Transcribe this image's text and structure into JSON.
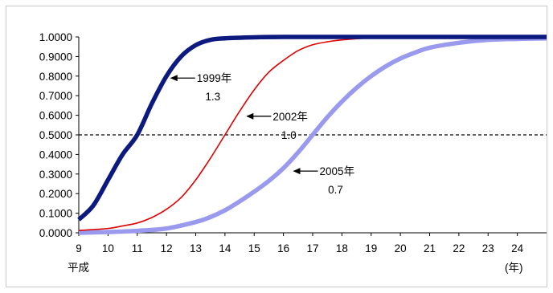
{
  "chart_data": {
    "type": "line",
    "title": "",
    "xlabel_left": "平成",
    "xlabel_right": "(年)",
    "x_ticks": [
      9,
      10,
      11,
      12,
      13,
      14,
      15,
      16,
      17,
      18,
      19,
      20,
      21,
      22,
      23,
      24
    ],
    "x_range": [
      9,
      25
    ],
    "ylim": [
      0,
      1
    ],
    "y_ticks": [
      "0.0000",
      "0.1000",
      "0.2000",
      "0.3000",
      "0.4000",
      "0.5000",
      "0.6000",
      "0.7000",
      "0.8000",
      "0.9000",
      "1.0000"
    ],
    "reference_line": {
      "y": 0.5,
      "style": "dashed"
    },
    "series": [
      {
        "color": "#0c1a80",
        "stroke": "thick",
        "x": [
          9,
          9.5,
          10,
          10.5,
          11,
          11.5,
          12,
          12.5,
          13,
          13.5,
          14,
          15,
          16,
          18,
          20,
          22,
          24,
          25
        ],
        "y": [
          0.067,
          0.14,
          0.27,
          0.4,
          0.5,
          0.66,
          0.8,
          0.9,
          0.958,
          0.985,
          0.993,
          0.998,
          1.0,
          1.0,
          1.0,
          1.0,
          1.0,
          1.0
        ]
      },
      {
        "color": "#e00000",
        "stroke": "thin",
        "x": [
          9,
          10,
          10.5,
          11,
          11.5,
          12,
          12.5,
          13,
          13.5,
          14,
          14.5,
          15,
          15.5,
          16,
          16.5,
          17,
          17.5,
          18,
          19,
          20,
          22,
          25
        ],
        "y": [
          0.012,
          0.022,
          0.035,
          0.05,
          0.078,
          0.12,
          0.18,
          0.27,
          0.38,
          0.5,
          0.62,
          0.73,
          0.82,
          0.88,
          0.93,
          0.96,
          0.975,
          0.985,
          0.995,
          0.998,
          1.0,
          1.0
        ]
      },
      {
        "color": "#9999ee",
        "stroke": "thick",
        "x": [
          9,
          10,
          11,
          12,
          13,
          13.5,
          14,
          14.5,
          15,
          15.5,
          16,
          16.5,
          17,
          17.5,
          18,
          18.5,
          19,
          19.5,
          20,
          20.5,
          21,
          22,
          23,
          24,
          25
        ],
        "y": [
          0.0,
          0.004,
          0.01,
          0.022,
          0.055,
          0.08,
          0.115,
          0.16,
          0.21,
          0.265,
          0.33,
          0.41,
          0.5,
          0.59,
          0.67,
          0.74,
          0.8,
          0.85,
          0.89,
          0.92,
          0.945,
          0.97,
          0.985,
          0.99,
          0.993
        ]
      }
    ],
    "annotations": [
      {
        "label": "1999年",
        "value": "1.3",
        "arrow_to": [
          12.1,
          0.79
        ]
      },
      {
        "label": "2002年",
        "value": "1.0",
        "arrow_to": [
          14.7,
          0.595
        ]
      },
      {
        "label": "2005年",
        "value": "0.7",
        "arrow_to": [
          16.3,
          0.315
        ]
      }
    ]
  }
}
